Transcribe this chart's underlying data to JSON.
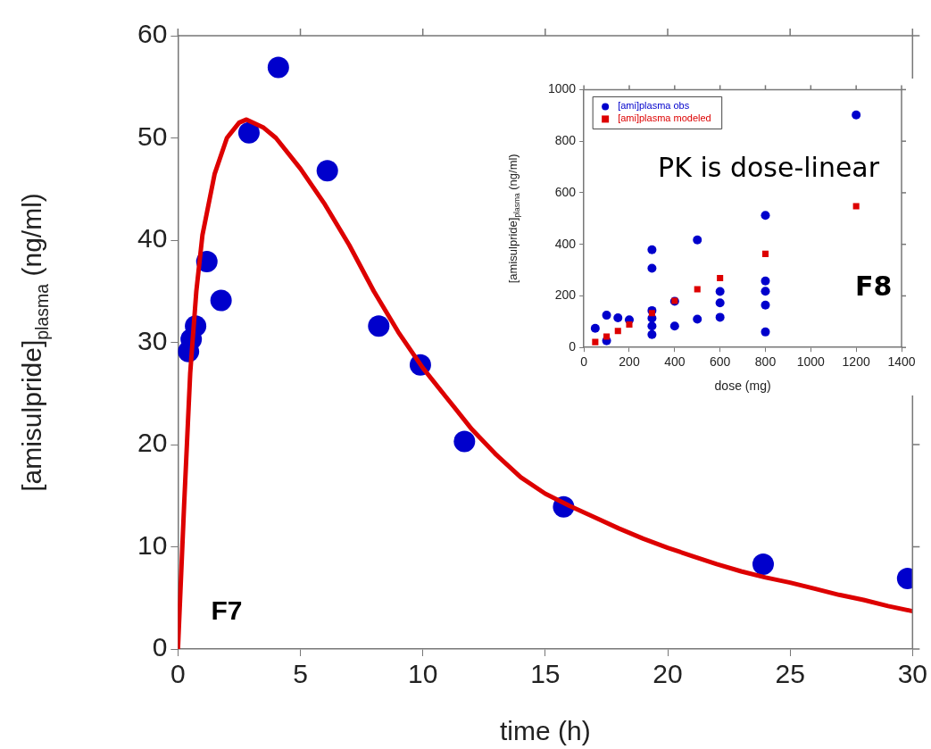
{
  "chart_data": [
    {
      "type": "scatter",
      "xlabel": "time (h)",
      "ylabel": "[amisulpride]$_{plasma}$ (ng/ml)",
      "xlim": [
        0,
        30
      ],
      "xticks": [
        0,
        5,
        10,
        15,
        20,
        25,
        30
      ],
      "ylim": [
        0,
        60
      ],
      "yticks": [
        0,
        10,
        20,
        30,
        40,
        50,
        60
      ],
      "grid": false,
      "legend": false,
      "annotations": [
        "F7"
      ],
      "series": [
        {
          "type": "scatter",
          "marker": "circle",
          "color": "#0000cc",
          "x": [
            0.43,
            0.54,
            0.72,
            1.18,
            1.76,
            2.9,
            4.1,
            6.1,
            8.2,
            9.9,
            11.7,
            15.75,
            23.9,
            29.8
          ],
          "values": [
            29.1,
            30.3,
            31.6,
            37.9,
            34.1,
            50.5,
            56.9,
            46.8,
            31.6,
            27.8,
            20.3,
            13.9,
            8.3,
            6.9
          ]
        },
        {
          "type": "line",
          "marker": "none",
          "color": "#dd0000",
          "x": [
            0,
            0.25,
            0.5,
            0.75,
            1,
            1.5,
            2,
            2.5,
            2.8,
            3.5,
            4,
            5,
            6,
            7,
            8,
            9,
            10,
            11,
            12,
            13,
            14,
            15,
            16,
            17,
            18,
            19,
            20,
            21,
            22,
            23,
            24,
            25,
            26,
            27,
            28,
            29,
            30
          ],
          "values": [
            0,
            14,
            27,
            35,
            40.5,
            46.5,
            50,
            51.5,
            51.8,
            51,
            50,
            47,
            43.5,
            39.5,
            35,
            31,
            27.5,
            24.5,
            21.5,
            19,
            16.8,
            15.2,
            14,
            12.9,
            11.8,
            10.8,
            9.9,
            9.1,
            8.3,
            7.6,
            7,
            6.5,
            5.9,
            5.3,
            4.8,
            4.2,
            3.7
          ]
        }
      ]
    },
    {
      "type": "scatter",
      "xlabel": "dose (mg)",
      "ylabel": "[amisulpride]$_{plasma}$ (ng/ml)",
      "xlim": [
        0,
        1400
      ],
      "xticks": [
        0,
        200,
        400,
        600,
        800,
        1000,
        1200,
        1400
      ],
      "ylim": [
        0,
        1000
      ],
      "yticks": [
        0,
        200,
        400,
        600,
        800,
        1000
      ],
      "grid": false,
      "legend": "top left",
      "annotations": [
        "PK is dose-linear",
        "F8"
      ],
      "series": [
        {
          "name": "[ami]plasma obs",
          "type": "scatter",
          "marker": "circle",
          "color": "#0000cc",
          "x": [
            50,
            100,
            100,
            150,
            200,
            300,
            300,
            300,
            300,
            300,
            300,
            400,
            400,
            500,
            500,
            600,
            600,
            600,
            800,
            800,
            800,
            800,
            800,
            1200
          ],
          "values": [
            74,
            125,
            26,
            115,
            107,
            379,
            307,
            143,
            113,
            83,
            50,
            83,
            179,
            417,
            110,
            217,
            173,
            117,
            512,
            258,
            218,
            164,
            60,
            902
          ]
        },
        {
          "name": "[ami]plasma modeled",
          "type": "scatter",
          "marker": "square",
          "color": "#dd0000",
          "x": [
            50,
            100,
            150,
            200,
            300,
            400,
            500,
            600,
            800,
            1200
          ],
          "values": [
            21,
            42,
            64,
            89,
            133,
            181,
            226,
            269,
            363,
            548
          ]
        }
      ]
    }
  ]
}
